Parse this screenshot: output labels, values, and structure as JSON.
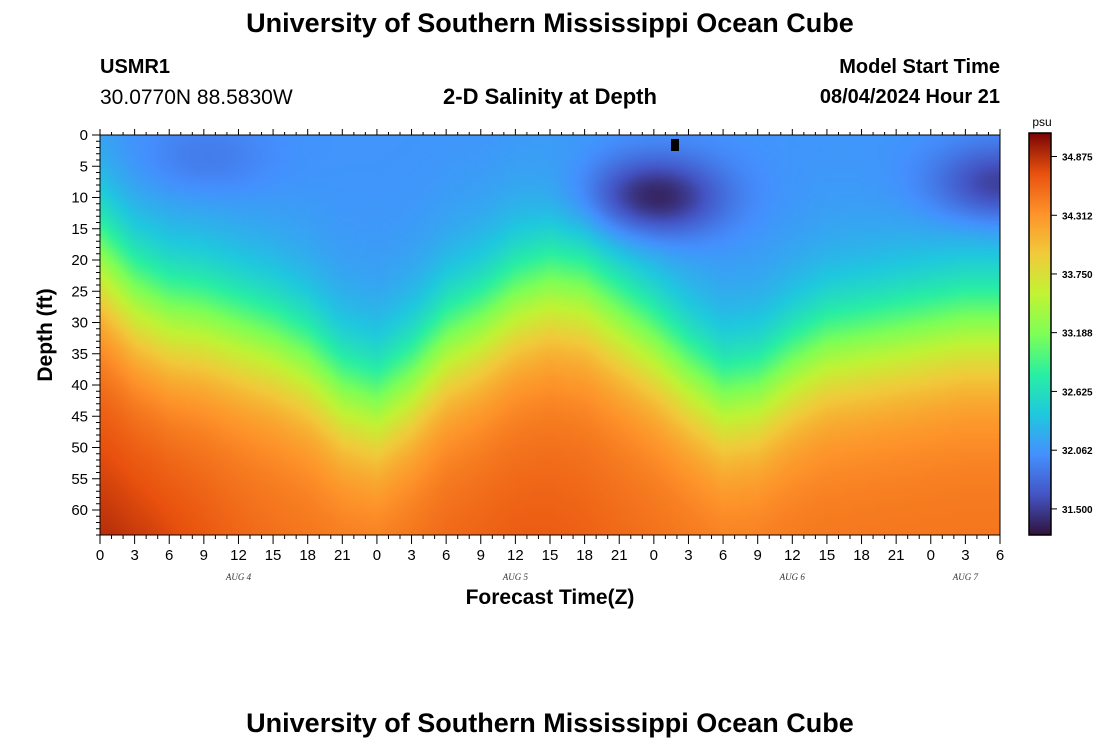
{
  "header": {
    "title": "University of Southern Mississippi Ocean Cube",
    "station_id": "USMR1",
    "station_coords": "30.0770N  88.5830W",
    "plot_title": "2-D Salinity at Depth",
    "model_start_label": "Model Start Time",
    "model_start_value": "08/04/2024 Hour 21"
  },
  "footer": {
    "title": "University of Southern Mississippi Ocean Cube"
  },
  "chart_data": {
    "type": "heatmap",
    "title": "2-D Salinity at Depth",
    "xlabel": "Forecast Time(Z)",
    "ylabel": "Depth (ft)",
    "x_tick_labels": [
      "0",
      "3",
      "6",
      "9",
      "12",
      "15",
      "18",
      "21",
      "0",
      "3",
      "6",
      "9",
      "12",
      "15",
      "18",
      "21",
      "0",
      "3",
      "6",
      "9",
      "12",
      "15",
      "18",
      "21",
      "0",
      "3",
      "6"
    ],
    "day_labels": [
      {
        "label": "AUG 4",
        "tick_index": 4
      },
      {
        "label": "AUG 5",
        "tick_index": 12
      },
      {
        "label": "AUG 6",
        "tick_index": 20
      },
      {
        "label": "AUG 7",
        "tick_index": 25
      }
    ],
    "y_tick_labels": [
      "0",
      "5",
      "10",
      "15",
      "20",
      "25",
      "30",
      "35",
      "40",
      "45",
      "50",
      "55",
      "60"
    ],
    "ylim": [
      0,
      64
    ],
    "y_reversed": true,
    "colorbar": {
      "unit": "psu",
      "tick_labels": [
        "34.875",
        "34.312",
        "33.750",
        "33.188",
        "32.625",
        "32.062",
        "31.500"
      ],
      "vmin": 31.25,
      "vmax": 35.1
    },
    "halocline_depth_ft": [
      {
        "t": 0,
        "d": 19
      },
      {
        "t": 3,
        "d": 25
      },
      {
        "t": 6,
        "d": 28
      },
      {
        "t": 9,
        "d": 29
      },
      {
        "t": 12,
        "d": 31
      },
      {
        "t": 15,
        "d": 33
      },
      {
        "t": 18,
        "d": 36
      },
      {
        "t": 21,
        "d": 41
      },
      {
        "t": 24,
        "d": 43
      },
      {
        "t": 27,
        "d": 39
      },
      {
        "t": 30,
        "d": 33
      },
      {
        "t": 33,
        "d": 30
      },
      {
        "t": 36,
        "d": 26
      },
      {
        "t": 39,
        "d": 24
      },
      {
        "t": 42,
        "d": 25
      },
      {
        "t": 45,
        "d": 29
      },
      {
        "t": 48,
        "d": 33
      },
      {
        "t": 51,
        "d": 38
      },
      {
        "t": 54,
        "d": 42
      },
      {
        "t": 57,
        "d": 41
      },
      {
        "t": 60,
        "d": 37
      },
      {
        "t": 63,
        "d": 34
      },
      {
        "t": 66,
        "d": 33
      },
      {
        "t": 69,
        "d": 32
      },
      {
        "t": 72,
        "d": 31
      },
      {
        "t": 75,
        "d": 30
      },
      {
        "t": 78,
        "d": 30
      }
    ],
    "surface_min_regions": [
      {
        "t": 9,
        "d": 4,
        "salinity": 31.85
      },
      {
        "t": 48,
        "d": 10,
        "salinity": 31.3
      },
      {
        "t": 78,
        "d": 8,
        "salinity": 31.45
      }
    ],
    "bottom_max_salinity": 35.05
  }
}
